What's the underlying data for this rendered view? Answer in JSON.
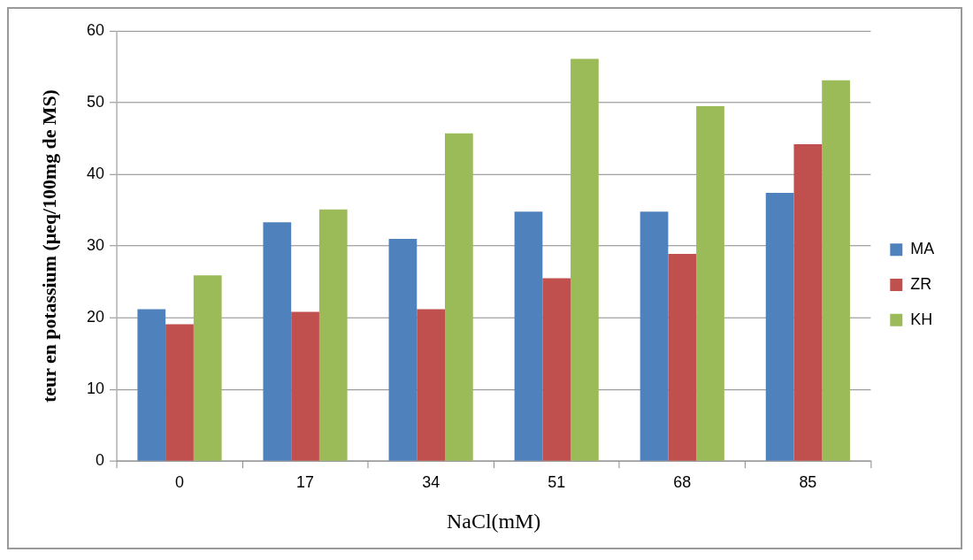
{
  "chart_data": {
    "type": "bar",
    "xlabel": "NaCl(mM)",
    "ylabel": "teur en potassium (µeq/100mg de MS)",
    "categories": [
      "0",
      "17",
      "34",
      "51",
      "68",
      "85"
    ],
    "series": [
      {
        "name": "MA",
        "color": "#4f81bd",
        "values": [
          21.2,
          33.3,
          31.0,
          34.8,
          34.8,
          37.4
        ]
      },
      {
        "name": "ZR",
        "color": "#c0504d",
        "values": [
          19.1,
          20.8,
          21.2,
          25.5,
          28.9,
          44.2
        ]
      },
      {
        "name": "KH",
        "color": "#9bbb59",
        "values": [
          25.9,
          35.1,
          45.7,
          56.1,
          49.5,
          53.1
        ]
      }
    ],
    "ylim": [
      0,
      60
    ],
    "yticks": [
      0,
      10,
      20,
      30,
      40,
      50,
      60
    ],
    "grid": "y",
    "legend": "right"
  }
}
